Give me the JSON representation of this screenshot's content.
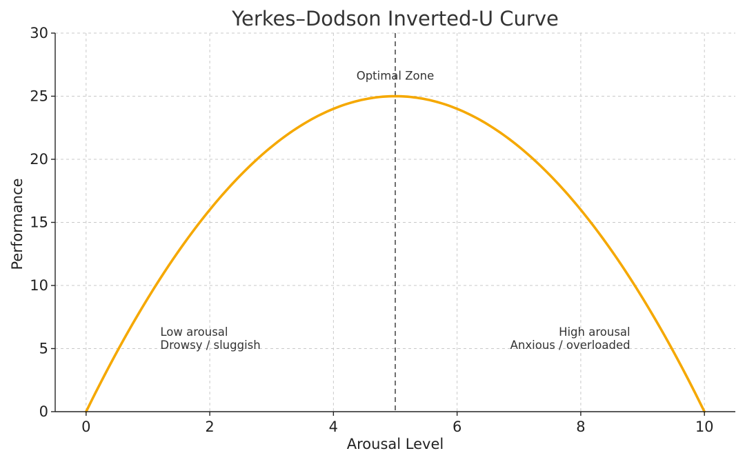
{
  "chart_data": {
    "type": "line",
    "title": "Yerkes–Dodson Inverted-U Curve",
    "xlabel": "Arousal Level",
    "ylabel": "Performance",
    "xlim": [
      0,
      10
    ],
    "ylim": [
      0,
      30
    ],
    "x_ticks": [
      0,
      2,
      4,
      6,
      8,
      10
    ],
    "y_ticks": [
      0,
      5,
      10,
      15,
      20,
      25,
      30
    ],
    "grid": true,
    "series": [
      {
        "color": "#f5a800",
        "formula": "y = x * (10 - x)",
        "x": [
          0,
          0.5,
          1,
          1.5,
          2,
          2.5,
          3,
          3.5,
          4,
          4.5,
          5,
          5.5,
          6,
          6.5,
          7,
          7.5,
          8,
          8.5,
          9,
          9.5,
          10
        ],
        "y": [
          0,
          4.75,
          9,
          12.75,
          16,
          18.75,
          21,
          22.75,
          24,
          24.75,
          25,
          24.75,
          24,
          22.75,
          21,
          18.75,
          16,
          12.75,
          9,
          4.75,
          0
        ]
      }
    ],
    "reference_line": {
      "x": 5,
      "color": "#6e6e6e",
      "style": "dashed"
    },
    "annotations": [
      {
        "id": "optimal",
        "lines": [
          "Optimal Zone"
        ],
        "x": 5,
        "y": 26.3,
        "anchor": "middle"
      },
      {
        "id": "low",
        "lines": [
          "Low arousal",
          "Drowsy / sluggish"
        ],
        "x": 1.2,
        "y": 6.0,
        "anchor": "start"
      },
      {
        "id": "high",
        "lines": [
          "High arousal",
          "Anxious / overloaded"
        ],
        "x": 8.8,
        "y": 6.0,
        "anchor": "end"
      }
    ]
  }
}
